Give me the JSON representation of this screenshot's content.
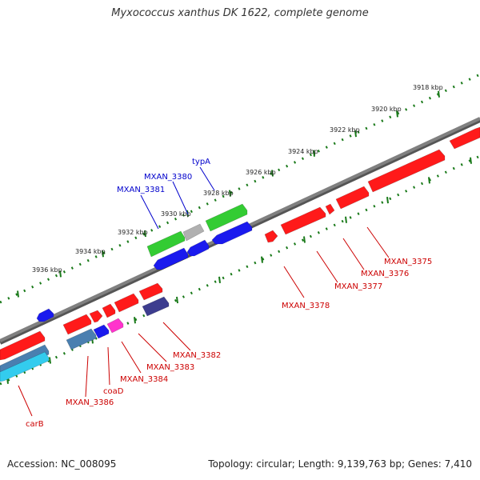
{
  "title": "Myxococcus xanthus DK 1622, complete genome",
  "footer": {
    "accession": "Accession: NC_008095",
    "topology": "Topology: circular; Length: 9,139,763 bp; Genes: 7,410"
  },
  "colors": {
    "backbone": "#808080",
    "tick": "#1a7a1a",
    "forward_red": "#ff1a1a",
    "forward_green": "#33cc33",
    "gray_gene": "#b0b0b0",
    "reverse_blue": "#1a1aee",
    "navy": "#3d3d8f",
    "magenta": "#ff33cc",
    "steel_blue": "#4a7fb0",
    "cyan": "#33ccee",
    "label_red": "#cc0000",
    "label_blue": "#0000cc"
  },
  "scale_labels": [
    "3918 kbp",
    "3920 kbp",
    "3922 kbp",
    "3924 kbp",
    "3926 kbp",
    "3928 kbp",
    "3930 kbp",
    "3932 kbp",
    "3934 kbp",
    "3936 kbp"
  ],
  "gene_labels": {
    "typA": "typA",
    "mxan3380": "MXAN_3380",
    "mxan3381": "MXAN_3381",
    "mxan3375": "MXAN_3375",
    "mxan3376": "MXAN_3376",
    "mxan3377": "MXAN_3377",
    "mxan3378": "MXAN_3378",
    "mxan3382": "MXAN_3382",
    "mxan3383": "MXAN_3383",
    "mxan3384": "MXAN_3384",
    "coaD": "coaD",
    "mxan3386": "MXAN_3386",
    "carB": "carB"
  }
}
